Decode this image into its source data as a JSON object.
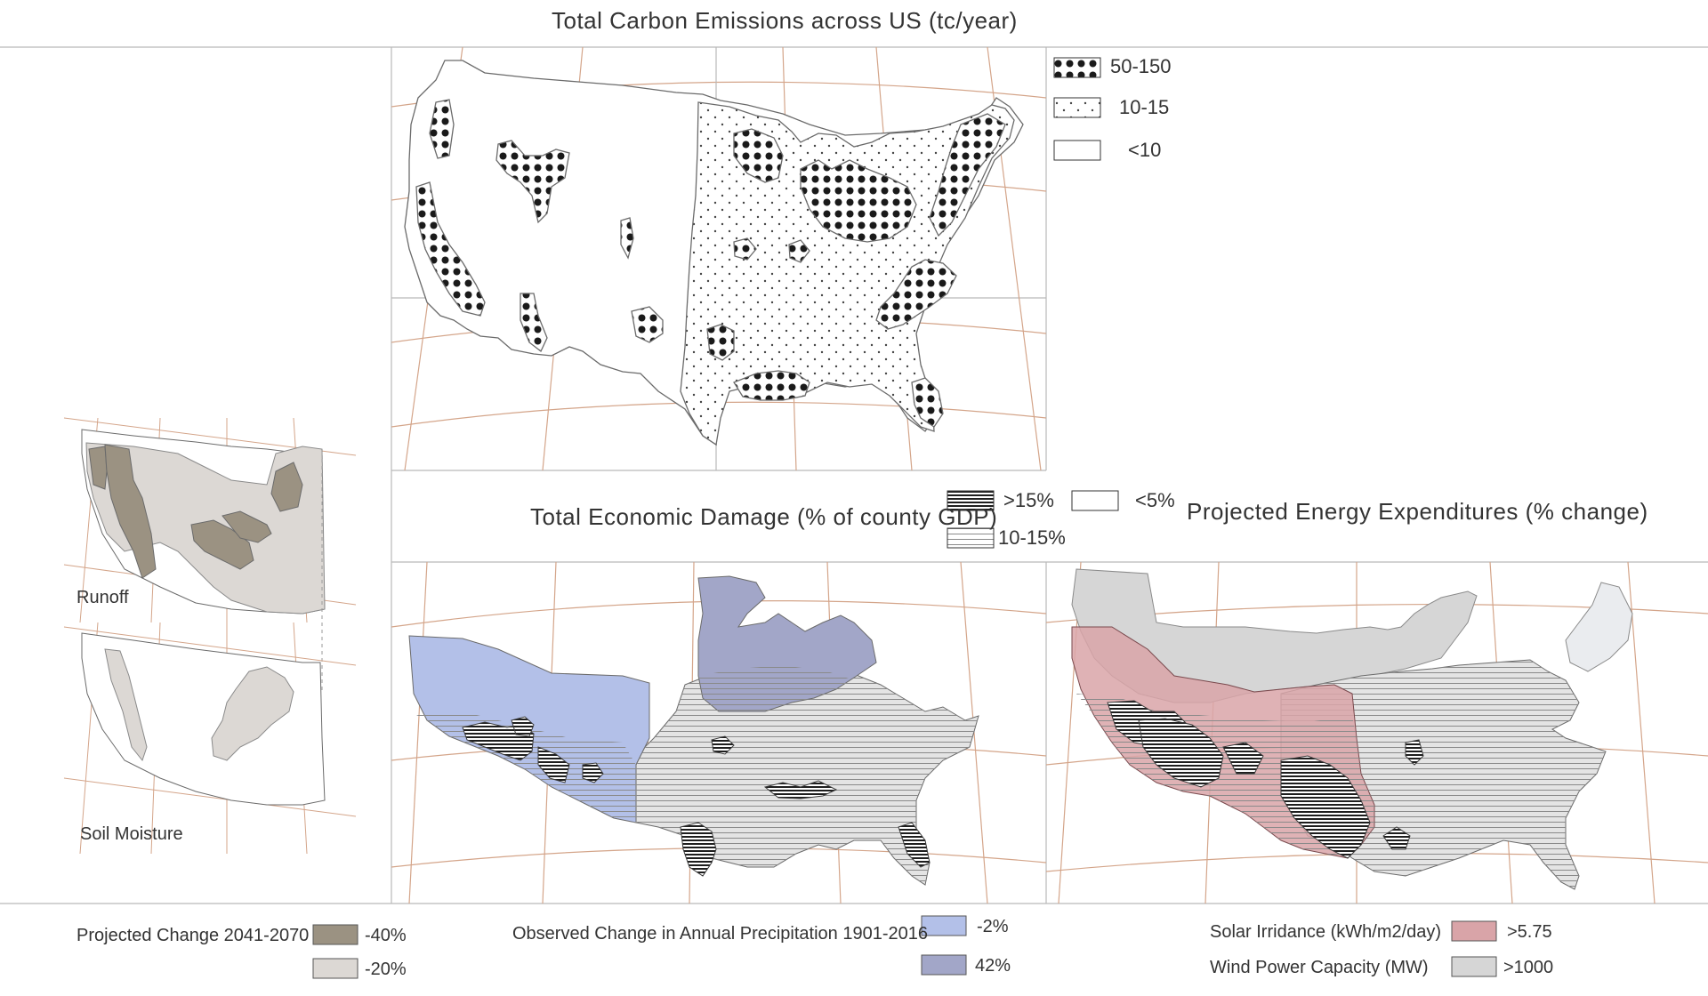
{
  "titles": {
    "carbon": "Total Carbon Emissions across US (tc/year)",
    "economic": "Total Economic Damage (% of county GDP)",
    "energy": "Projected Energy Expenditures (% change)"
  },
  "carbon_legend": [
    {
      "label": "50-150",
      "pattern": "large-dots"
    },
    {
      "label": "10-15",
      "pattern": "small-dots"
    },
    {
      "label": "<10",
      "pattern": "blank"
    }
  ],
  "economic_legend": [
    {
      "label": ">15%",
      "pattern": "dense-hatch"
    },
    {
      "label": "10-15%",
      "pattern": "light-hatch"
    },
    {
      "label": "<5%",
      "pattern": "blank"
    }
  ],
  "small_maps": {
    "runoff": "Runoff",
    "soil": "Soil Moisture"
  },
  "bottom_legends": {
    "projected": {
      "title": "Projected Change 2041-2070",
      "items": [
        {
          "label": "-40%",
          "color": "#9b9282"
        },
        {
          "label": "-20%",
          "color": "#dcd8d4"
        }
      ]
    },
    "precip": {
      "title": "Observed Change in Annual Precipitation 1901-2016",
      "items": [
        {
          "label": "-2%",
          "color": "#b3c0e8"
        },
        {
          "label": "42%",
          "color": "#a2a6c8"
        }
      ]
    },
    "solar": {
      "title": "Solar Irridance (kWh/m2/day)",
      "label": ">5.75",
      "color": "#d9a4a8"
    },
    "wind": {
      "title": "Wind Power Capacity (MW)",
      "label": ">1000",
      "color": "#d6d6d6"
    }
  },
  "colors": {
    "grid": "#d4a58a",
    "frame": "#b9b9b9",
    "outline": "#6b6b6b"
  }
}
